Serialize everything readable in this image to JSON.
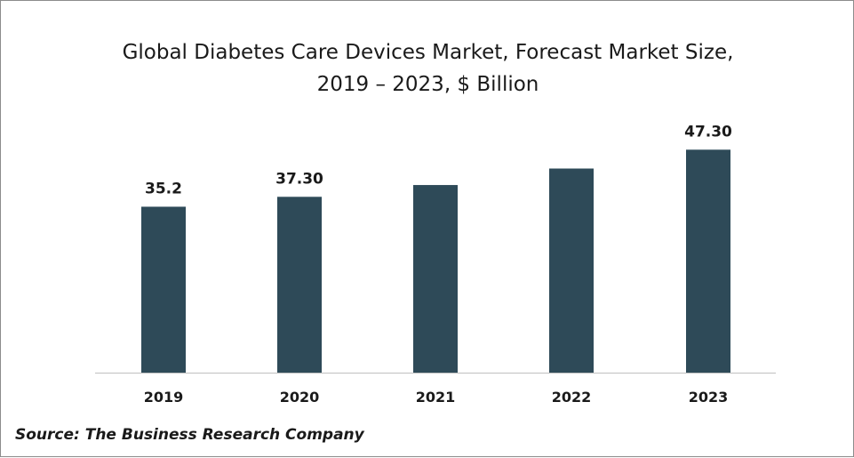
{
  "chart_data": {
    "type": "bar",
    "title_line1": "Global Diabetes Care Devices Market, Forecast Market Size,",
    "title_line2": "2019 – 2023, $ Billion",
    "categories": [
      "2019",
      "2020",
      "2021",
      "2022",
      "2023"
    ],
    "values": [
      35.2,
      37.3,
      39.8,
      43.3,
      47.3
    ],
    "data_labels": [
      "35.2",
      "37.30",
      "",
      "",
      "47.30"
    ],
    "ylim": [
      0,
      50
    ],
    "grid": false,
    "legend": "none",
    "bar_color": "#2e4a58",
    "axis_color": "#bfbfbf"
  },
  "source": "Source: The Business Research Company"
}
